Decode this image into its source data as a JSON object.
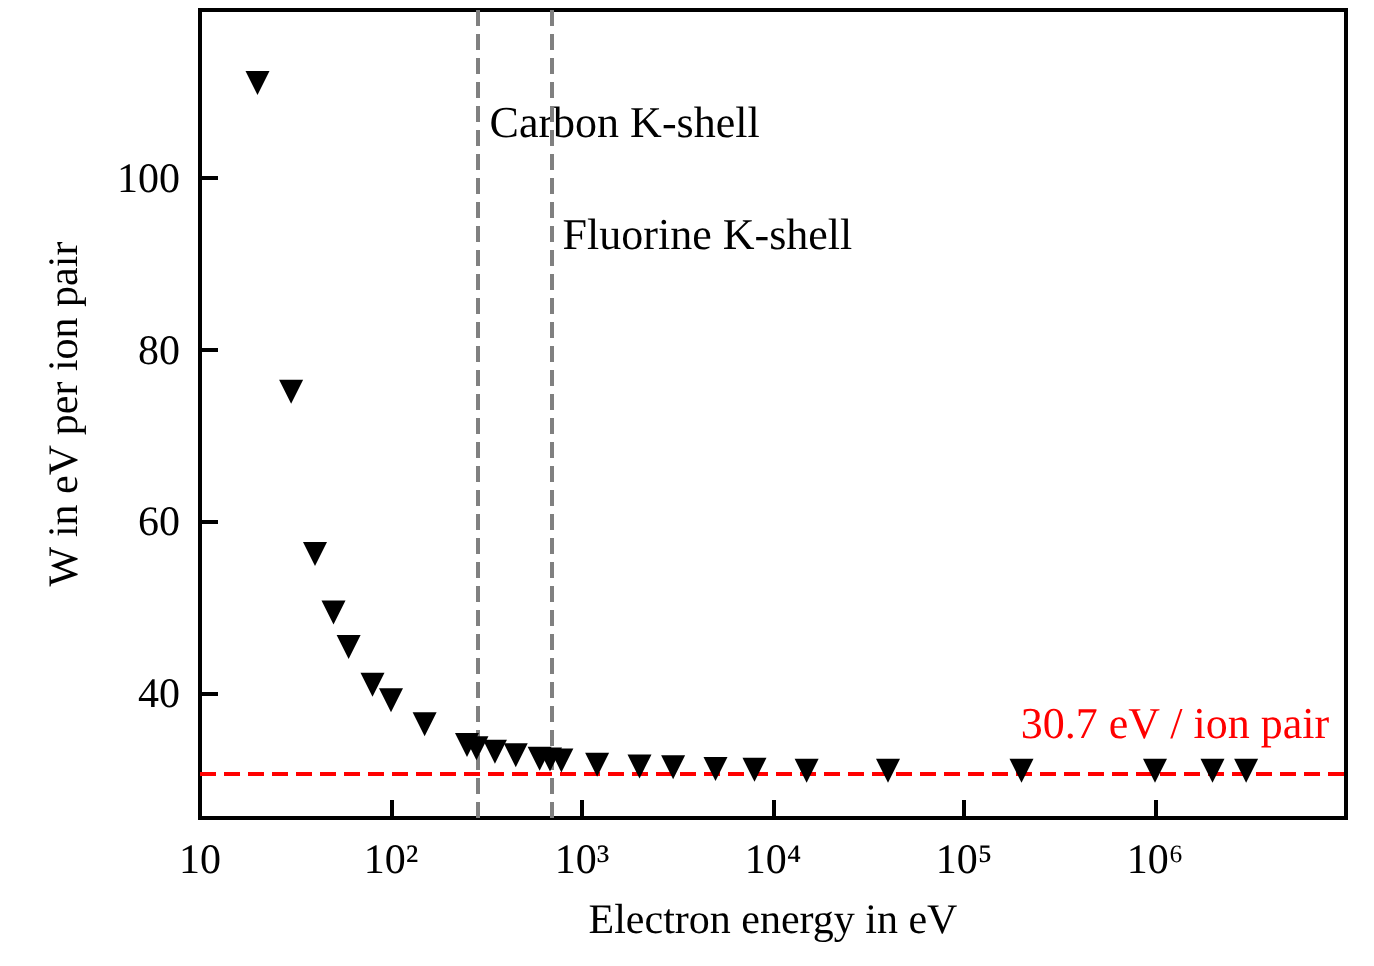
{
  "chart_data": {
    "type": "scatter",
    "xlabel": "Electron energy in eV",
    "ylabel": "W in eV per ion pair",
    "log": "x",
    "marker": "triangle",
    "grid": false,
    "xlim": [
      10,
      10000000
    ],
    "ylim": [
      25.5,
      119.5
    ],
    "xticks": [
      {
        "value": 10,
        "label": "10"
      },
      {
        "value": 100,
        "label": "10²"
      },
      {
        "value": 1000,
        "label": "10³"
      },
      {
        "value": 10000,
        "label": "10⁴"
      },
      {
        "value": 100000,
        "label": "10⁵"
      },
      {
        "value": 1000000,
        "label": "10⁶"
      },
      {
        "value": 10000000,
        "label": null
      }
    ],
    "yticks": [
      40,
      60,
      80,
      100
    ],
    "series": [
      {
        "color": "#000000",
        "x": [
          20,
          30,
          40,
          50,
          60,
          80,
          100,
          150,
          250,
          280,
          350,
          450,
          600,
          680,
          780,
          1200,
          2000,
          3000,
          5000,
          8000,
          15000,
          40000,
          200000,
          1000000,
          2000000,
          3000000
        ],
        "values": [
          111,
          75.1,
          56.2,
          49.4,
          45.4,
          41,
          39.2,
          36.4,
          34,
          33.6,
          33.2,
          32.8,
          32.4,
          32.3,
          32.2,
          31.7,
          31.5,
          31.4,
          31.2,
          31.1,
          31,
          31,
          31,
          31,
          31,
          31
        ]
      }
    ],
    "ref_lines": [
      {
        "axis": "x",
        "value": 284,
        "label": "Carbon K-shell",
        "color": "#808080",
        "line_style": "dashed"
      },
      {
        "axis": "x",
        "value": 685,
        "label": "Fluorine K-shell",
        "color": "#808080",
        "line_style": "dashed"
      },
      {
        "axis": "y",
        "value": 30.7,
        "label": "30.7 eV / ion pair",
        "color": "#ff0000",
        "line_style": "dashed"
      }
    ]
  }
}
